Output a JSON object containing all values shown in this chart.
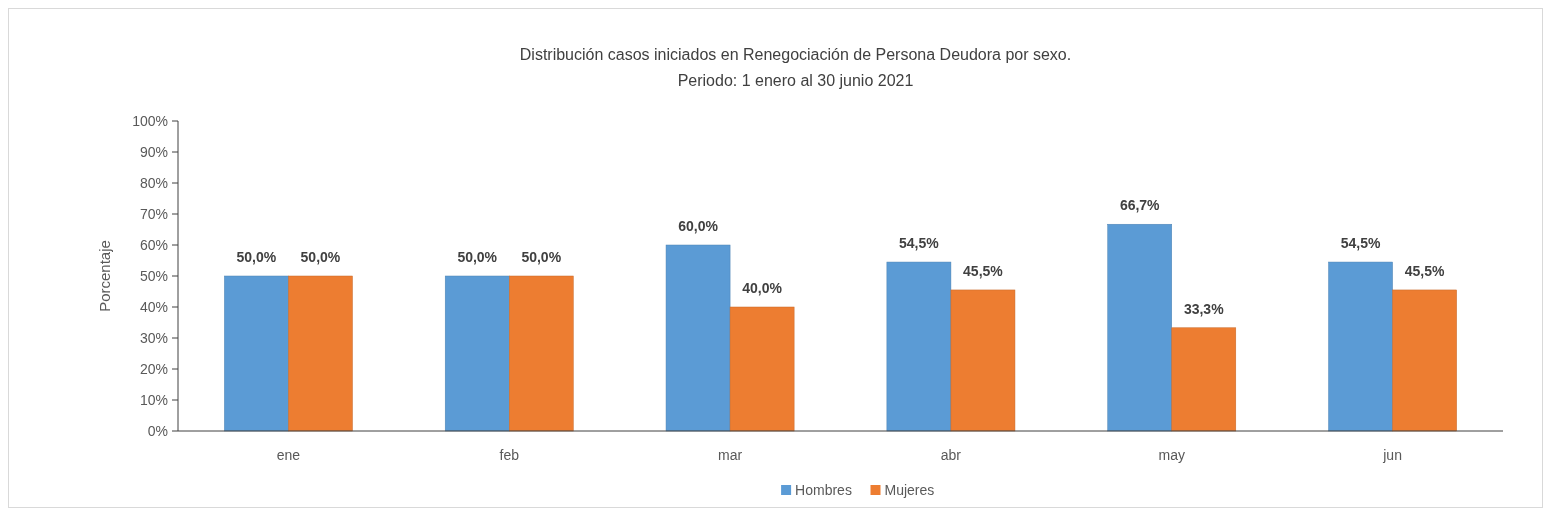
{
  "chart_data": {
    "type": "bar",
    "title": "Distribución casos iniciados en Renegociación de Persona Deudora por sexo.",
    "subtitle": "Periodo: 1 enero al 30 junio 2021",
    "ylabel": "Porcentaje",
    "categories": [
      "ene",
      "feb",
      "mar",
      "abr",
      "may",
      "jun"
    ],
    "series": [
      {
        "name": "Hombres",
        "color": "#5b9bd5",
        "values": [
          50.0,
          50.0,
          60.0,
          54.5,
          66.7,
          54.5
        ],
        "value_labels": [
          "50,0%",
          "50,0%",
          "60,0%",
          "54,5%",
          "66,7%",
          "54,5%"
        ]
      },
      {
        "name": "Mujeres",
        "color": "#ed7d31",
        "values": [
          50.0,
          50.0,
          40.0,
          45.5,
          33.3,
          45.5
        ],
        "value_labels": [
          "50,0%",
          "50,0%",
          "40,0%",
          "45,5%",
          "33,3%",
          "45,5%"
        ]
      }
    ],
    "ylim": [
      0,
      100
    ],
    "yticks": [
      {
        "value": 0,
        "label": "0%"
      },
      {
        "value": 10,
        "label": "10%"
      },
      {
        "value": 20,
        "label": "20%"
      },
      {
        "value": 30,
        "label": "30%"
      },
      {
        "value": 40,
        "label": "40%"
      },
      {
        "value": 50,
        "label": "50%"
      },
      {
        "value": 60,
        "label": "60%"
      },
      {
        "value": 70,
        "label": "70%"
      },
      {
        "value": 80,
        "label": "80%"
      },
      {
        "value": 90,
        "label": "90%"
      },
      {
        "value": 100,
        "label": "100%"
      }
    ],
    "grid": false,
    "legend": "bottom"
  }
}
